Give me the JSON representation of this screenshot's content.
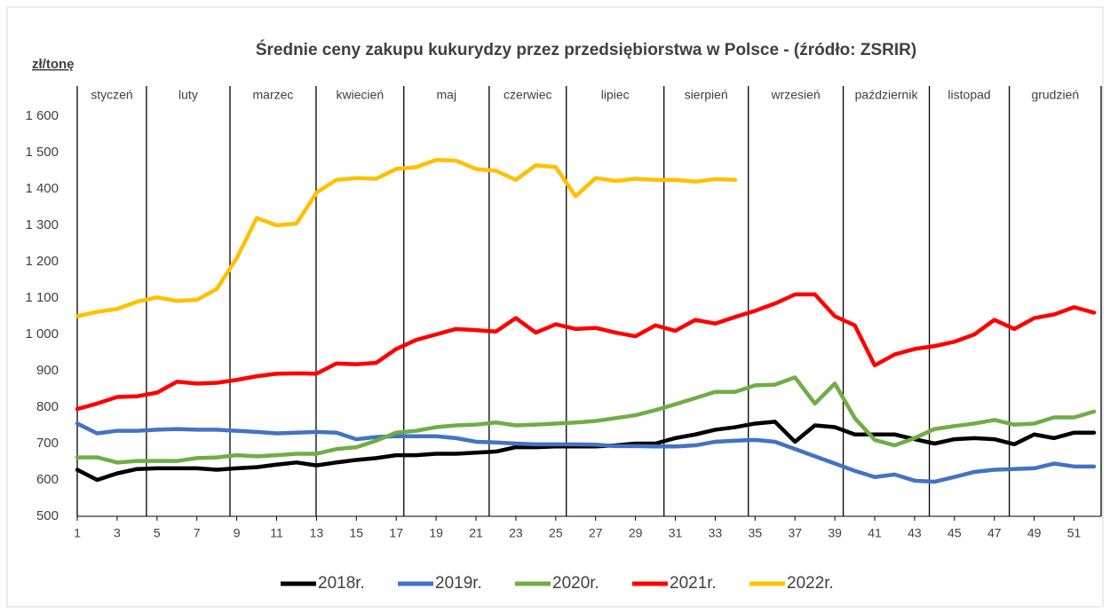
{
  "chart_data": {
    "type": "line",
    "title": "Średnie ceny zakupu kukurydzy przez przedsiębiorstwa w Polsce - (źródło: ZSRIR)",
    "y_label": "zł/tonę",
    "x": [
      1,
      2,
      3,
      4,
      5,
      6,
      7,
      8,
      9,
      10,
      11,
      12,
      13,
      14,
      15,
      16,
      17,
      18,
      19,
      20,
      21,
      22,
      23,
      24,
      25,
      26,
      27,
      28,
      29,
      30,
      31,
      32,
      33,
      34,
      35,
      36,
      37,
      38,
      39,
      40,
      41,
      42,
      43,
      44,
      45,
      46,
      47,
      48,
      49,
      50,
      51,
      52
    ],
    "xlim": [
      1,
      52
    ],
    "xticks": [
      1,
      3,
      5,
      7,
      9,
      11,
      13,
      15,
      17,
      19,
      21,
      23,
      25,
      27,
      29,
      31,
      33,
      35,
      37,
      39,
      41,
      43,
      45,
      47,
      49,
      51
    ],
    "ylim": [
      500,
      1600
    ],
    "yticks": [
      500,
      600,
      700,
      800,
      900,
      {
        "value": 1000,
        "label": "1 000"
      },
      {
        "value": 1100,
        "label": "1 100"
      },
      {
        "value": 1200,
        "label": "1 200"
      },
      {
        "value": 1300,
        "label": "1 300"
      },
      {
        "value": 1400,
        "label": "1 400"
      },
      {
        "value": 1500,
        "label": "1 500"
      },
      {
        "value": 1600,
        "label": "1 600"
      }
    ],
    "months": [
      "styczeń",
      "luty",
      "marzec",
      "kwiecień",
      "maj",
      "czerwiec",
      "lipiec",
      "sierpień",
      "wrzesień",
      "październik",
      "listopad",
      "grudzień"
    ],
    "month_boundaries": [
      4.47,
      8.66,
      12.98,
      17.38,
      21.66,
      25.53,
      30.43,
      34.66,
      39.42,
      43.74,
      47.75
    ],
    "series": [
      {
        "name": "2018r.",
        "color": "#000000",
        "values": [
          628,
          600,
          618,
          630,
          632,
          632,
          632,
          628,
          632,
          635,
          642,
          648,
          640,
          648,
          655,
          660,
          668,
          668,
          672,
          672,
          675,
          678,
          690,
          690,
          692,
          692,
          692,
          695,
          700,
          700,
          715,
          725,
          738,
          745,
          755,
          760,
          705,
          750,
          745,
          725,
          725,
          725,
          712,
          700,
          712,
          715,
          712,
          698,
          725,
          715,
          730,
          730
        ]
      },
      {
        "name": "2019r.",
        "color": "#4472c4",
        "values": [
          755,
          728,
          735,
          735,
          738,
          740,
          738,
          738,
          735,
          732,
          728,
          730,
          732,
          730,
          712,
          718,
          720,
          720,
          720,
          715,
          705,
          703,
          700,
          698,
          698,
          698,
          697,
          693,
          693,
          692,
          692,
          695,
          705,
          708,
          710,
          705,
          685,
          665,
          645,
          625,
          608,
          615,
          598,
          595,
          608,
          622,
          628,
          630,
          632,
          645,
          637,
          637
        ]
      },
      {
        "name": "2020r.",
        "color": "#70ad47",
        "values": [
          662,
          662,
          648,
          652,
          652,
          652,
          660,
          662,
          668,
          665,
          668,
          672,
          672,
          685,
          690,
          708,
          730,
          735,
          745,
          750,
          752,
          758,
          750,
          752,
          755,
          758,
          762,
          770,
          778,
          792,
          808,
          825,
          842,
          842,
          860,
          862,
          882,
          810,
          865,
          770,
          710,
          695,
          715,
          740,
          748,
          755,
          765,
          752,
          755,
          772,
          772,
          788
        ]
      },
      {
        "name": "2021r.",
        "color": "#ff0000",
        "values": [
          795,
          810,
          828,
          830,
          840,
          870,
          865,
          867,
          875,
          885,
          892,
          893,
          892,
          920,
          918,
          922,
          960,
          985,
          1000,
          1015,
          1012,
          1008,
          1045,
          1005,
          1028,
          1015,
          1018,
          1005,
          995,
          1025,
          1010,
          1040,
          1030,
          1048,
          1065,
          1085,
          1110,
          1110,
          1050,
          1025,
          915,
          945,
          960,
          968,
          980,
          1000,
          1040,
          1015,
          1045,
          1055,
          1075,
          1060
        ]
      },
      {
        "name": "2022r.",
        "color": "#ffc000",
        "values": [
          1050,
          1062,
          1070,
          1090,
          1102,
          1092,
          1095,
          1125,
          1210,
          1320,
          1300,
          1305,
          1390,
          1425,
          1430,
          1428,
          1455,
          1460,
          1480,
          1478,
          1455,
          1450,
          1425,
          1465,
          1460,
          1380,
          1430,
          1422,
          1428,
          1425,
          1425,
          1420,
          1427,
          1425,
          null,
          null,
          null,
          null,
          null,
          null,
          null,
          null,
          null,
          null,
          null,
          null,
          null,
          null,
          null,
          null,
          null,
          null
        ]
      }
    ]
  }
}
